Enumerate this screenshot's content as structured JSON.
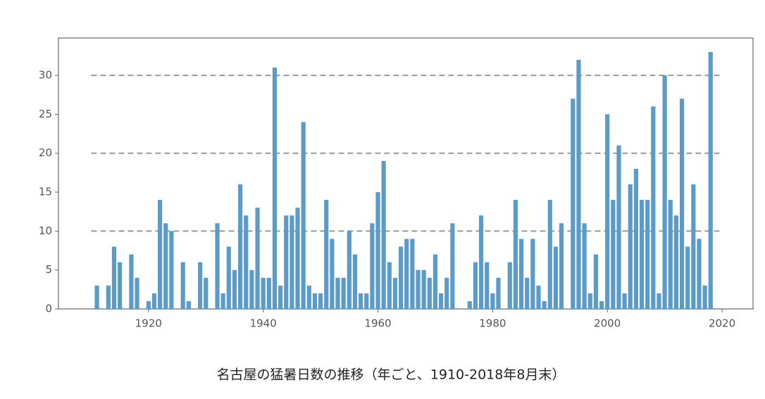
{
  "chart_data": {
    "type": "bar",
    "title": "名古屋の猛暑日数の推移（年ごと、1910-2018年8月末）",
    "color": "#5b9bc8",
    "x": [
      1911,
      1913,
      1914,
      1915,
      1917,
      1918,
      1920,
      1921,
      1922,
      1923,
      1924,
      1926,
      1927,
      1929,
      1930,
      1932,
      1933,
      1934,
      1935,
      1936,
      1937,
      1938,
      1939,
      1940,
      1941,
      1942,
      1943,
      1944,
      1945,
      1946,
      1947,
      1948,
      1949,
      1950,
      1951,
      1952,
      1953,
      1954,
      1955,
      1956,
      1957,
      1958,
      1959,
      1960,
      1961,
      1962,
      1963,
      1964,
      1965,
      1966,
      1967,
      1968,
      1969,
      1970,
      1971,
      1972,
      1973,
      1976,
      1977,
      1978,
      1979,
      1980,
      1981,
      1983,
      1984,
      1985,
      1986,
      1987,
      1988,
      1989,
      1990,
      1991,
      1992,
      1994,
      1995,
      1996,
      1997,
      1998,
      1999,
      2000,
      2001,
      2002,
      2003,
      2004,
      2005,
      2006,
      2007,
      2008,
      2009,
      2010,
      2011,
      2012,
      2013,
      2014,
      2015,
      2016,
      2017,
      2018
    ],
    "values": [
      3,
      3,
      8,
      6,
      7,
      4,
      1,
      2,
      14,
      11,
      10,
      6,
      1,
      6,
      4,
      11,
      2,
      8,
      5,
      16,
      12,
      5,
      13,
      4,
      4,
      31,
      3,
      12,
      12,
      13,
      24,
      3,
      2,
      2,
      14,
      9,
      4,
      4,
      10,
      7,
      2,
      2,
      11,
      15,
      19,
      6,
      4,
      8,
      9,
      9,
      5,
      5,
      4,
      7,
      2,
      4,
      11,
      1,
      6,
      12,
      6,
      2,
      4,
      6,
      14,
      9,
      4,
      9,
      3,
      1,
      14,
      8,
      11,
      27,
      32,
      11,
      2,
      7,
      1,
      25,
      14,
      21,
      2,
      16,
      18,
      14,
      14,
      26,
      2,
      30,
      14,
      12,
      27,
      8,
      16,
      9,
      3,
      33
    ],
    "xlim": [
      1904.3,
      2025.4
    ],
    "xticks": [
      1920,
      1940,
      1960,
      1980,
      2000,
      2020
    ],
    "ylim": [
      0,
      34.8
    ],
    "yticks": [
      0,
      5,
      10,
      15,
      20,
      25,
      30
    ],
    "hlines": [
      10,
      20,
      30
    ]
  }
}
